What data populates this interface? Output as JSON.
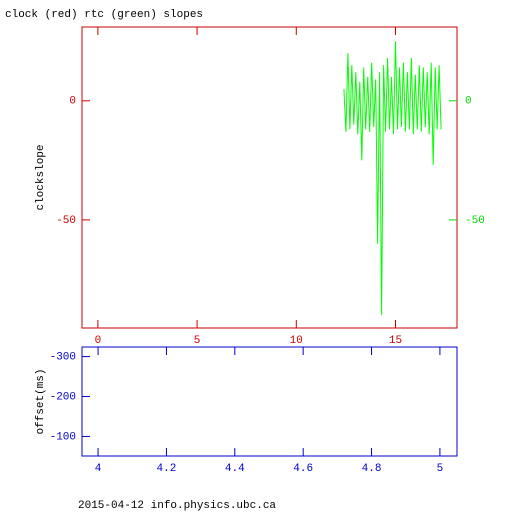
{
  "chart_data": [
    {
      "type": "line",
      "title": "clock (red) rtc (green) slopes",
      "y_label": "clockslope",
      "xlim": [
        -0.8,
        18.1
      ],
      "ylim": [
        -95.4,
        31
      ],
      "xticks": [
        0,
        5,
        10,
        15
      ],
      "yticks": [
        -50,
        0
      ],
      "y2lim": [
        -95.4,
        31
      ],
      "y2ticks": [
        -50,
        0
      ],
      "axis_color": "#cc0000",
      "y2_color": "#00dd00",
      "series": [
        {
          "color": "#00ff00",
          "axis": "y2",
          "x": [
            12.4,
            12.5,
            12.6,
            12.7,
            12.8,
            12.9,
            13.0,
            13.1,
            13.2,
            13.3,
            13.4,
            13.5,
            13.6,
            13.7,
            13.8,
            13.9,
            14.0,
            14.1,
            14.2,
            14.3,
            14.4,
            14.5,
            14.6,
            14.7,
            14.8,
            14.9,
            15.0,
            15.1,
            15.2,
            15.3,
            15.4,
            15.5,
            15.6,
            15.7,
            15.8,
            15.9,
            16.0,
            16.1,
            16.2,
            16.3,
            16.4,
            16.5,
            16.6,
            16.7,
            16.8,
            16.9,
            17.0,
            17.1,
            17.2,
            17.3
          ],
          "values": [
            5,
            -13,
            20,
            -12,
            15,
            -10,
            12,
            -14,
            8,
            -25,
            14,
            -12,
            10,
            -13,
            16,
            -11,
            9,
            -60,
            12,
            -90,
            15,
            -13,
            18,
            -12,
            10,
            -14,
            25,
            -12,
            14,
            -11,
            16,
            -13,
            12,
            -12,
            18,
            -14,
            11,
            -12,
            15,
            -13,
            14,
            -11,
            12,
            -14,
            16,
            -27,
            14,
            -12,
            15,
            -12
          ]
        }
      ]
    },
    {
      "type": "line",
      "y_label": "offset(ms)",
      "xlim": [
        3.953,
        5.05
      ],
      "ylim": [
        -51,
        -324
      ],
      "xticks": [
        4,
        4.2,
        4.4,
        4.6,
        4.8,
        5
      ],
      "yticks": [
        -300,
        -200,
        -100
      ],
      "axis_color": "#0000cc",
      "series": []
    }
  ],
  "footer": "2015-04-12 info.physics.ubc.ca"
}
